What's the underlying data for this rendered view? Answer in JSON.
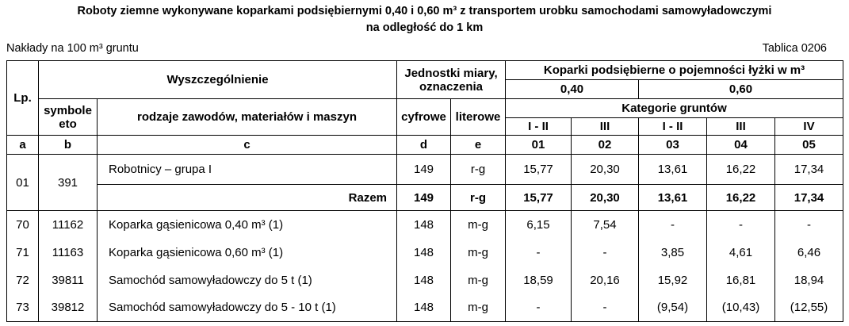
{
  "header": {
    "title_line1": "Roboty ziemne wykonywane koparkami podsiębiernymi 0,40 i 0,60 m³ z transportem urobku samochodami samowyładowczymi",
    "title_line2": "na  odległość do 1 km",
    "left": "Nakłady na 100 m³ gruntu",
    "right": "Tablica 0206"
  },
  "table": {
    "head": {
      "lp": "Lp.",
      "wyszczegolnienie": "Wyszczególnienie",
      "jednostki": "Jednostki miary, oznaczenia",
      "koparki": "Koparki podsiębierne o pojemności łyżki w m³",
      "cap1": "0,40",
      "cap2": "0,60",
      "symbole": "symbole eto",
      "rodzaje": "rodzaje zawodów, materiałów i maszyn",
      "cyfrowe": "cyfrowe",
      "literowe": "literowe",
      "kategorie": "Kategorie gruntów",
      "categories": [
        "I - II",
        "III",
        "I - II",
        "III",
        "IV"
      ],
      "letters": [
        "a",
        "b",
        "c",
        "d",
        "e",
        "01",
        "02",
        "03",
        "04",
        "05"
      ]
    },
    "rows": [
      [
        "01",
        "391",
        "Robotnicy – grupa I",
        "149",
        "r-g",
        "15,77",
        "20,30",
        "13,61",
        "16,22",
        "17,34"
      ],
      [
        "Razem",
        "149",
        "r-g",
        "15,77",
        "20,30",
        "13,61",
        "16,22",
        "17,34"
      ],
      [
        "70",
        "11162",
        "Koparka gąsienicowa 0,40 m³ (1)",
        "148",
        "m-g",
        "6,15",
        "7,54",
        "-",
        "-",
        "-"
      ],
      [
        "71",
        "11163",
        "Koparka gąsienicowa 0,60 m³ (1)",
        "148",
        "m-g",
        "-",
        "-",
        "3,85",
        "4,61",
        "6,46"
      ],
      [
        "72",
        "39811",
        "Samochód samowyładowczy do 5 t (1)",
        "148",
        "m-g",
        "18,59",
        "20,16",
        "15,92",
        "16,81",
        "18,94"
      ],
      [
        "73",
        "39812",
        "Samochód samowyładowczy do 5 - 10 t (1)",
        "148",
        "m-g",
        "-",
        "-",
        "(9,54)",
        "(10,43)",
        "(12,55)"
      ]
    ]
  }
}
